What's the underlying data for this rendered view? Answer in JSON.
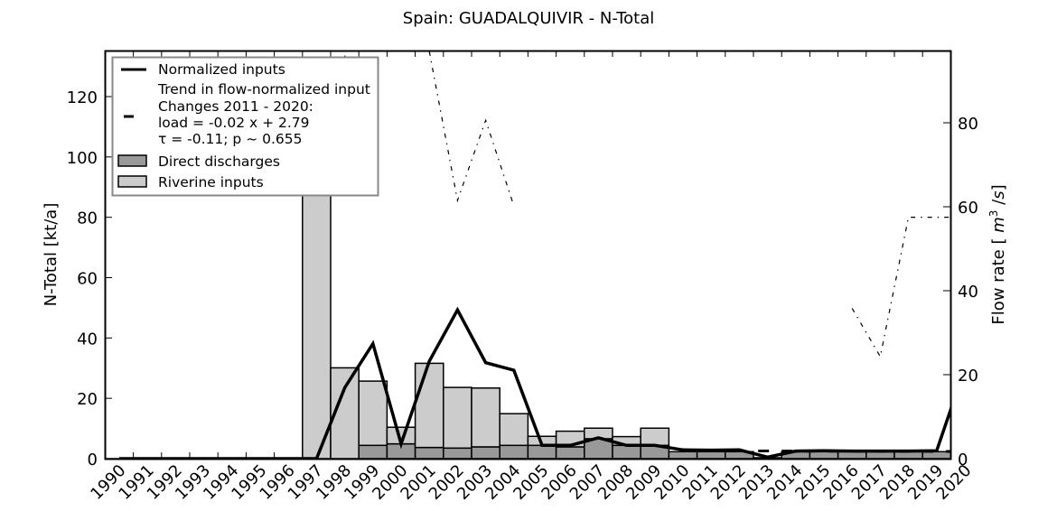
{
  "chart_data": {
    "type": "bar",
    "title": "Spain: GUADALQUIVIR - N-Total",
    "xlabel": "",
    "ylabel": "N-Total [kt/a]",
    "ylabel_right": "Flow rate [m^3 /s]",
    "ylim": [
      0,
      135
    ],
    "ylim_right": [
      0,
      97
    ],
    "yticks": [
      0,
      20,
      40,
      60,
      80,
      100,
      120
    ],
    "yticks_right": [
      0,
      20,
      40,
      60,
      80
    ],
    "categories": [
      "1990",
      "1991",
      "1992",
      "1993",
      "1994",
      "1995",
      "1996",
      "1997",
      "1998",
      "1999",
      "2000",
      "2001",
      "2002",
      "2003",
      "2004",
      "2005",
      "2006",
      "2007",
      "2008",
      "2009",
      "2010",
      "2011",
      "2012",
      "2013",
      "2014",
      "2015",
      "2016",
      "2017",
      "2018",
      "2019",
      "2020"
    ],
    "grid": false,
    "legend_position": "upper left",
    "series": [
      {
        "name": "Direct discharges",
        "kind": "stacked-bar",
        "color": "#999999",
        "values": [
          0,
          0,
          0,
          0,
          0,
          0,
          0,
          0,
          0,
          4.4,
          4.9,
          3.7,
          3.5,
          3.9,
          4.4,
          4.4,
          3.9,
          6.6,
          4.4,
          4.4,
          2.3,
          2.3,
          2.3,
          0.3,
          2.3,
          2.3,
          2.3,
          2.3,
          2.3,
          2.3,
          null
        ]
      },
      {
        "name": "Riverine inputs",
        "kind": "stacked-bar",
        "color": "#cccccc",
        "values": [
          0,
          0,
          0,
          0,
          0,
          0,
          0,
          123.5,
          30.1,
          21.3,
          5.5,
          27.9,
          20.1,
          19.5,
          10.5,
          3.0,
          5.2,
          3.5,
          2.9,
          5.7,
          0,
          0,
          0,
          0,
          0,
          0,
          0,
          0,
          0,
          0,
          null
        ]
      },
      {
        "name": "Normalized inputs",
        "kind": "line",
        "color": "#000000",
        "values": [
          0,
          0,
          0,
          0,
          0,
          0,
          0,
          0,
          23.5,
          38.1,
          4.9,
          32.3,
          49.3,
          31.8,
          29.3,
          4.4,
          4.4,
          6.9,
          4.4,
          4.4,
          2.9,
          2.8,
          2.9,
          0.5,
          2.5,
          2.6,
          2.5,
          2.5,
          2.5,
          2.6,
          30
        ]
      },
      {
        "name": "Trend in flow-normalized input",
        "kind": "dashed-line",
        "color": "#000000",
        "x_range": [
          "2011",
          "2020"
        ],
        "values": [
          2.57,
          2.55,
          2.53,
          2.51,
          2.49,
          2.47,
          2.45,
          2.43,
          2.41,
          2.39
        ]
      },
      {
        "name": "Flow rate",
        "kind": "dash-dot-line",
        "axis": "right",
        "color": "#000000",
        "values": [
          null,
          null,
          null,
          null,
          null,
          null,
          null,
          null,
          96,
          76.6,
          null,
          97,
          61.5,
          80.6,
          60.2,
          null,
          null,
          null,
          null,
          null,
          null,
          null,
          null,
          null,
          null,
          null,
          35.8,
          24.3,
          57.5,
          57.5,
          57.5
        ]
      }
    ],
    "legend": [
      {
        "label": "Normalized inputs",
        "symbol": "line"
      },
      {
        "label": "Trend in flow-normalized input",
        "symbol": "dash"
      },
      {
        "label": "Changes 2011 - 2020:",
        "symbol": "none"
      },
      {
        "label": "load = -0.02 x +  2.79",
        "symbol": "none"
      },
      {
        "label": "τ = -0.11; p ~ 0.655",
        "symbol": "none"
      },
      {
        "label": "Direct discharges",
        "symbol": "patch-dark"
      },
      {
        "label": "Riverine inputs",
        "symbol": "patch-light"
      }
    ],
    "trend": {
      "period": "2011 - 2020",
      "slope": -0.02,
      "intercept": 2.79,
      "tau": -0.11,
      "p": 0.655
    }
  }
}
